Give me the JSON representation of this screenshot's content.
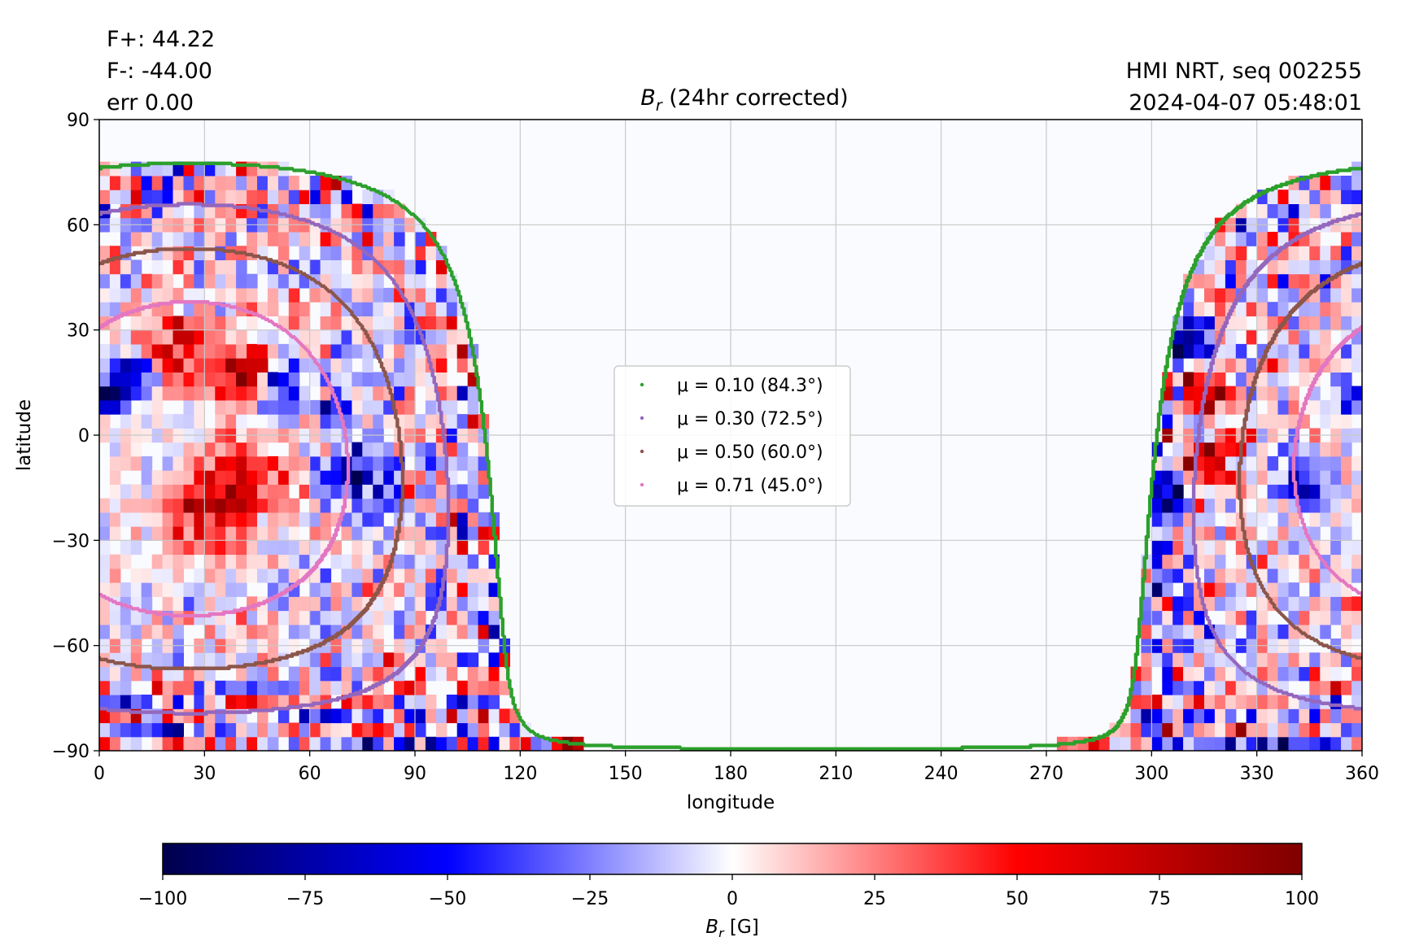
{
  "chart_data": {
    "type": "heatmap",
    "title_var": "B",
    "title_sub": "r",
    "title_rest": " (24hr corrected)",
    "stats": {
      "f_plus": "F+: 44.22",
      "f_minus": "F-: -44.00",
      "err": "err 0.00"
    },
    "header_right": {
      "line1": "HMI NRT, seq 002255",
      "line2": "2024-04-07 05:48:01"
    },
    "xlabel": "longitude",
    "ylabel": "latitude",
    "xlim": [
      0,
      360
    ],
    "ylim": [
      -90,
      90
    ],
    "xticks": [
      0,
      30,
      60,
      90,
      120,
      150,
      180,
      210,
      240,
      270,
      300,
      330,
      360
    ],
    "yticks": [
      90,
      60,
      30,
      0,
      -30,
      -60,
      -90
    ],
    "ytick_labels": [
      "90",
      "60",
      "30",
      "0",
      "−30",
      "−60",
      "−90"
    ],
    "grid": true,
    "data_coverage": [
      {
        "lon_min": 0,
        "lon_max": 118,
        "description_side": "east"
      },
      {
        "lon_min": 293,
        "lon_max": 360,
        "description_side": "west"
      }
    ],
    "field_values_range": [
      -100,
      100
    ],
    "series": [
      {
        "name": "μ = 0.10 (84.3°)",
        "mu": 0.1,
        "angle_deg": 84.3,
        "color": "#2ca02c"
      },
      {
        "name": "μ = 0.30 (72.5°)",
        "mu": 0.3,
        "angle_deg": 72.5,
        "color": "#9467bd"
      },
      {
        "name": "μ = 0.50 (60.0°)",
        "mu": 0.5,
        "angle_deg": 60.0,
        "color": "#8c564b"
      },
      {
        "name": "μ = 0.71 (45.0°)",
        "mu": 0.71,
        "angle_deg": 45.0,
        "color": "#e377c2"
      }
    ],
    "disk_center": {
      "lon": 26,
      "lat": -6.5
    },
    "legend_placement": "center",
    "colorbar": {
      "label_var": "B",
      "label_sub": "r",
      "label_rest": " [G]",
      "min": -100,
      "max": 100,
      "ticks": [
        -100,
        -75,
        -50,
        -25,
        0,
        25,
        50,
        75,
        100
      ],
      "tick_labels": [
        "−100",
        "−75",
        "−50",
        "−25",
        "0",
        "25",
        "50",
        "75",
        "100"
      ],
      "colormap": "seismic",
      "stops": [
        "#00004c",
        "#0000ff",
        "#ffffff",
        "#ff0000",
        "#7f0000"
      ]
    },
    "background_color": "#fafbff",
    "grid_color": "#c8c8c8"
  }
}
